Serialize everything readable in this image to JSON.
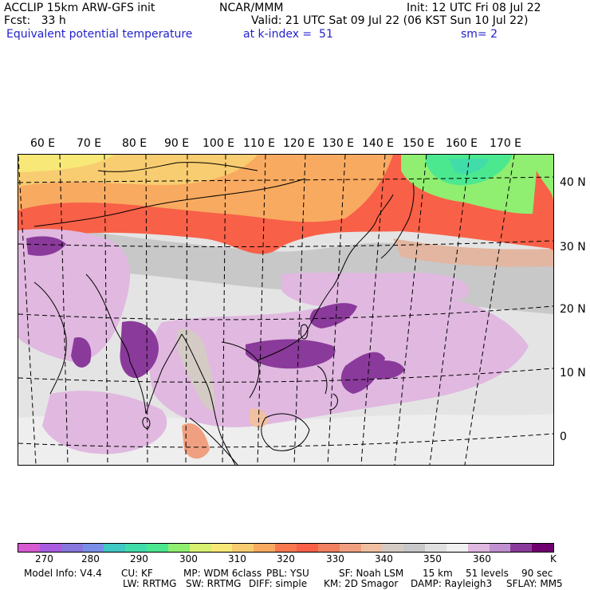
{
  "header": {
    "line1_left": "ACCLIP 15km ARW-GFS init",
    "line1_center": "NCAR/MMM",
    "line1_right": "Init: 12 UTC Fri 08 Jul 22",
    "line2_left": "Fcst:   33 h",
    "line2_right": "Valid: 21 UTC Sat 09 Jul 22 (06 KST Sun 10 Jul 22)",
    "line3_left": "Equivalent potential temperature",
    "line3_center": "at k-index =  51",
    "line3_right": "sm= 2"
  },
  "map": {
    "lon_labels": [
      "60 E",
      "70 E",
      "80 E",
      "90 E",
      "100 E",
      "110 E",
      "120 E",
      "130 E",
      "140 E",
      "150 E",
      "160 E",
      "170 E"
    ],
    "lat_labels": [
      "40 N",
      "30 N",
      "20 N",
      "10 N",
      "0"
    ]
  },
  "colorbar": {
    "colors": [
      "#d65ad0",
      "#a95ce0",
      "#8877dd",
      "#7a8ee8",
      "#40c8c4",
      "#40dcaa",
      "#4ce890",
      "#90ee70",
      "#d8f070",
      "#f8e878",
      "#f8cc70",
      "#f8aa60",
      "#f87850",
      "#f86048",
      "#f08060",
      "#f0a080",
      "#f0c0a0",
      "#d4ccc4",
      "#c8c8c8",
      "#e0e0e0",
      "#f0f0f0",
      "#e0b8e0",
      "#c090d0",
      "#8a3a9a",
      "#700070"
    ],
    "labels": [
      "270",
      "280",
      "290",
      "300",
      "310",
      "320",
      "330",
      "340",
      "350",
      "360",
      "K"
    ]
  },
  "footer": {
    "line1": [
      "Model Info: V4.4",
      "CU: KF",
      "MP: WDM 6class",
      "PBL: YSU",
      "SF: Noah LSM",
      "15 km",
      "51 levels",
      "90 sec"
    ],
    "line2": [
      "LW: RRTMG",
      "SW: RRTMG",
      "DIFF: simple",
      "KM: 2D Smagor",
      "DAMP: Rayleigh3",
      "SFLAY: MM5"
    ]
  }
}
